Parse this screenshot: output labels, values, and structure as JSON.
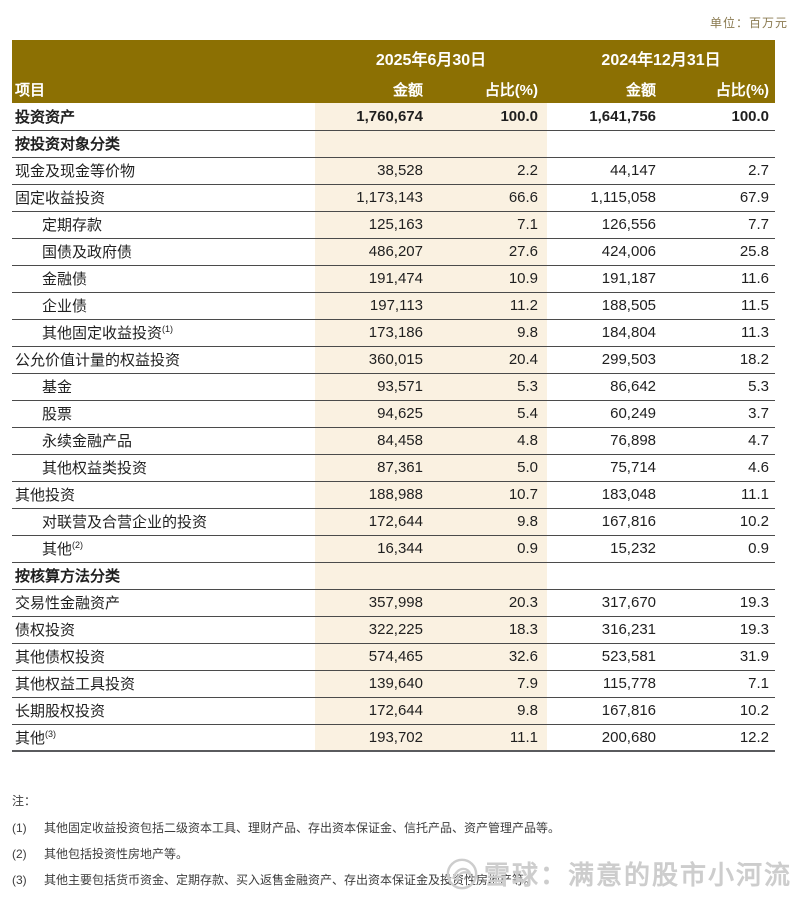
{
  "unit_label": "单位：百万元",
  "colors": {
    "header_bg": "#8C7003",
    "highlight_bg": "#FAF1E1",
    "row_rule": "#4b4b4b",
    "bottom_rule": "#5a5b5e",
    "unit_label": "#8a7a50",
    "watermark": "#cdcdcd"
  },
  "table": {
    "item_header": "项目",
    "col_groups": [
      {
        "label": "2025年6月30日"
      },
      {
        "label": "2024年12月31日"
      }
    ],
    "sub_headers": [
      "金额",
      "占比(%)",
      "金额",
      "占比(%)"
    ],
    "rows": [
      {
        "label": "投资资产",
        "type": "total",
        "indent": 0,
        "v": [
          "1,760,674",
          "100.0",
          "1,641,756",
          "100.0"
        ]
      },
      {
        "label": "按投资对象分类",
        "type": "section",
        "indent": 0,
        "v": [
          "",
          "",
          "",
          ""
        ]
      },
      {
        "label": "现金及现金等价物",
        "type": "data",
        "indent": 0,
        "v": [
          "38,528",
          "2.2",
          "44,147",
          "2.7"
        ]
      },
      {
        "label": "固定收益投资",
        "type": "data",
        "indent": 0,
        "v": [
          "1,173,143",
          "66.6",
          "1,115,058",
          "67.9"
        ]
      },
      {
        "label": "定期存款",
        "type": "data",
        "indent": 1,
        "v": [
          "125,163",
          "7.1",
          "126,556",
          "7.7"
        ]
      },
      {
        "label": "国债及政府债",
        "type": "data",
        "indent": 1,
        "v": [
          "486,207",
          "27.6",
          "424,006",
          "25.8"
        ]
      },
      {
        "label": "金融债",
        "type": "data",
        "indent": 1,
        "v": [
          "191,474",
          "10.9",
          "191,187",
          "11.6"
        ]
      },
      {
        "label": "企业债",
        "type": "data",
        "indent": 1,
        "v": [
          "197,113",
          "11.2",
          "188,505",
          "11.5"
        ]
      },
      {
        "label": "其他固定收益投资",
        "sup": "(1)",
        "type": "data",
        "indent": 1,
        "v": [
          "173,186",
          "9.8",
          "184,804",
          "11.3"
        ]
      },
      {
        "label": "公允价值计量的权益投资",
        "type": "data",
        "indent": 0,
        "v": [
          "360,015",
          "20.4",
          "299,503",
          "18.2"
        ]
      },
      {
        "label": "基金",
        "type": "data",
        "indent": 1,
        "v": [
          "93,571",
          "5.3",
          "86,642",
          "5.3"
        ]
      },
      {
        "label": "股票",
        "type": "data",
        "indent": 1,
        "v": [
          "94,625",
          "5.4",
          "60,249",
          "3.7"
        ]
      },
      {
        "label": "永续金融产品",
        "type": "data",
        "indent": 1,
        "v": [
          "84,458",
          "4.8",
          "76,898",
          "4.7"
        ]
      },
      {
        "label": "其他权益类投资",
        "type": "data",
        "indent": 1,
        "v": [
          "87,361",
          "5.0",
          "75,714",
          "4.6"
        ]
      },
      {
        "label": "其他投资",
        "type": "data",
        "indent": 0,
        "v": [
          "188,988",
          "10.7",
          "183,048",
          "11.1"
        ]
      },
      {
        "label": "对联营及合营企业的投资",
        "type": "data",
        "indent": 1,
        "v": [
          "172,644",
          "9.8",
          "167,816",
          "10.2"
        ]
      },
      {
        "label": "其他",
        "sup": "(2)",
        "type": "data",
        "indent": 1,
        "v": [
          "16,344",
          "0.9",
          "15,232",
          "0.9"
        ]
      },
      {
        "label": "按核算方法分类",
        "type": "section",
        "indent": 0,
        "v": [
          "",
          "",
          "",
          ""
        ]
      },
      {
        "label": "交易性金融资产",
        "type": "data",
        "indent": 0,
        "v": [
          "357,998",
          "20.3",
          "317,670",
          "19.3"
        ]
      },
      {
        "label": "债权投资",
        "type": "data",
        "indent": 0,
        "v": [
          "322,225",
          "18.3",
          "316,231",
          "19.3"
        ]
      },
      {
        "label": "其他债权投资",
        "type": "data",
        "indent": 0,
        "v": [
          "574,465",
          "32.6",
          "523,581",
          "31.9"
        ]
      },
      {
        "label": "其他权益工具投资",
        "type": "data",
        "indent": 0,
        "v": [
          "139,640",
          "7.9",
          "115,778",
          "7.1"
        ]
      },
      {
        "label": "长期股权投资",
        "type": "data",
        "indent": 0,
        "v": [
          "172,644",
          "9.8",
          "167,816",
          "10.2"
        ]
      },
      {
        "label": "其他",
        "sup": "(3)",
        "type": "data",
        "indent": 0,
        "v": [
          "193,702",
          "11.1",
          "200,680",
          "12.2"
        ]
      }
    ]
  },
  "notes": {
    "title": "注：",
    "items": [
      {
        "num": "(1)",
        "text": "其他固定收益投资包括二级资本工具、理财产品、存出资本保证金、信托产品、资产管理产品等。"
      },
      {
        "num": "(2)",
        "text": "其他包括投资性房地产等。"
      },
      {
        "num": "(3)",
        "text": "其他主要包括货币资金、定期存款、买入返售金融资产、存出资本保证金及投资性房地产等。"
      }
    ]
  },
  "watermark": {
    "text": "雪球：满意的股市小河流"
  }
}
